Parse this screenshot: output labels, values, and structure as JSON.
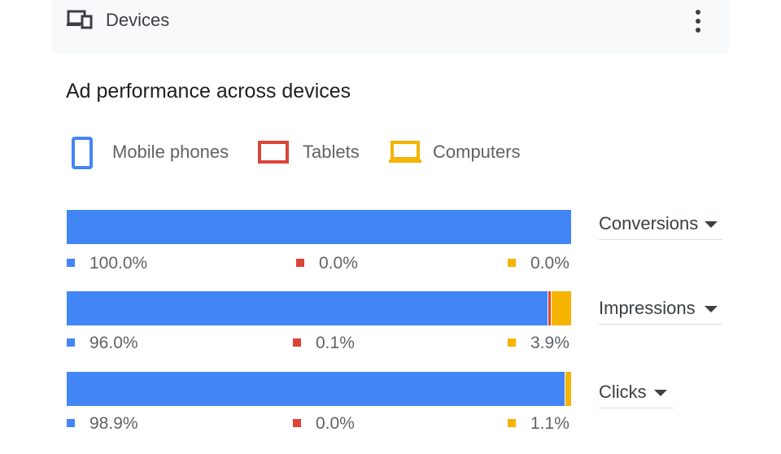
{
  "header": {
    "title": "Devices",
    "icon": "devices-icon",
    "more_icon": "more-vert-icon"
  },
  "section_title": "Ad performance across devices",
  "colors": {
    "mobile": "#4285f4",
    "tablet": "#db4437",
    "computer": "#f4b400",
    "divider": "#ffffff"
  },
  "legend": [
    {
      "label": "Mobile phones",
      "icon": "mobile-phone-icon"
    },
    {
      "label": "Tablets",
      "icon": "tablet-icon"
    },
    {
      "label": "Computers",
      "icon": "computer-icon"
    }
  ],
  "metrics": [
    {
      "label": "Conversions",
      "mobile": 100.0,
      "tablet": 0.0,
      "computer": 0.0,
      "mobile_label": "100.0%",
      "tablet_label": "0.0%",
      "computer_label": "0.0%"
    },
    {
      "label": "Impressions",
      "mobile": 96.0,
      "tablet": 0.1,
      "computer": 3.9,
      "mobile_label": "96.0%",
      "tablet_label": "0.1%",
      "computer_label": "3.9%"
    },
    {
      "label": "Clicks",
      "mobile": 98.9,
      "tablet": 0.0,
      "computer": 1.1,
      "mobile_label": "98.9%",
      "tablet_label": "0.0%",
      "computer_label": "1.1%"
    }
  ]
}
